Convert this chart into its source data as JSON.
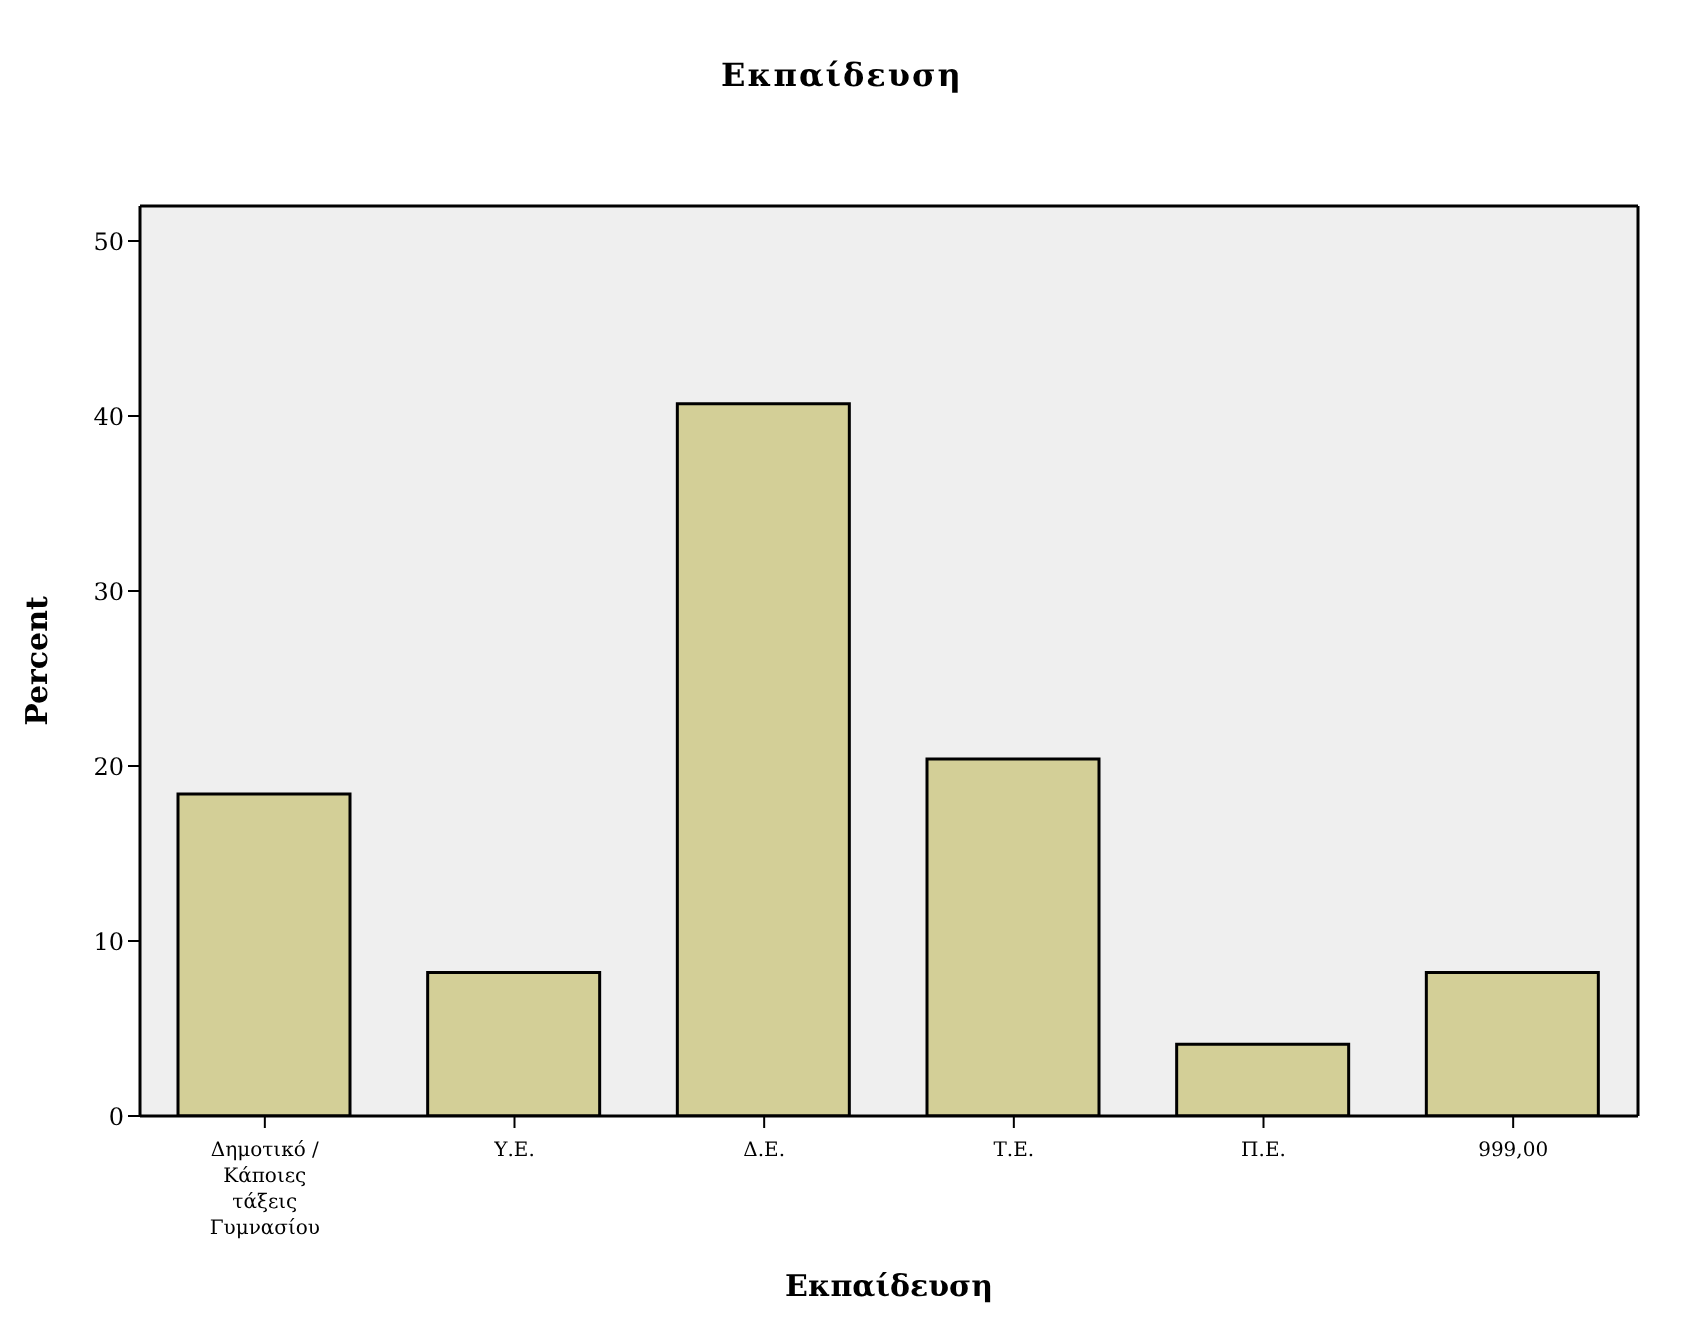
{
  "chart_data": {
    "type": "bar",
    "title": "Εκπαίδευση",
    "xlabel": "Εκπαίδευση",
    "ylabel": "Percent",
    "categories": [
      "Δημοτικό / Κάποιες τάξεις Γυμνασίου",
      "Υ.Ε.",
      "Δ.Ε.",
      "Τ.Ε.",
      "Π.Ε.",
      "999,00"
    ],
    "values": [
      18.4,
      8.2,
      40.7,
      20.4,
      4.1,
      8.2
    ],
    "color": "#d3cf97",
    "ylim": [
      0,
      52
    ],
    "yticks": [
      0,
      10,
      20,
      30,
      40,
      50
    ],
    "grid": false
  }
}
